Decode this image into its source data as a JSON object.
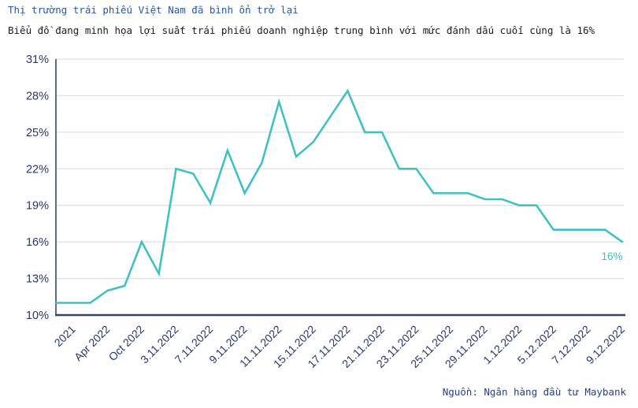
{
  "header": {
    "title": "Thị trường trái phiếu Việt Nam đã bình ổn trở lại",
    "subtitle": "Biểu đồ đang minh họa lợi suất trái phiếu doanh nghiệp trung bình với mức đánh dấu cuối cùng là 16%"
  },
  "footer": {
    "source": "Nguồn: Ngân hàng đầu tư Maybank"
  },
  "chart_data": {
    "type": "line",
    "title": "Thị trường trái phiếu Việt Nam đã bình ổn trở lại",
    "subtitle": "Biểu đồ đang minh họa lợi suất trái phiếu doanh nghiệp trung bình với mức đánh dấu cuối cùng là 16%",
    "series": [
      {
        "name": "Lợi suất trái phiếu doanh nghiệp trung bình",
        "color": "#41c1c4",
        "values": [
          11,
          11,
          11,
          12,
          12.4,
          16,
          13.4,
          22,
          21.6,
          19.2,
          23.5,
          20,
          22.5,
          27.5,
          23,
          24.2,
          26.3,
          28.4,
          25,
          25,
          22,
          22,
          20,
          20,
          20,
          19.5,
          19.5,
          19,
          19,
          17,
          17,
          17,
          17,
          16
        ]
      }
    ],
    "x_tick_labels": [
      "2021",
      "Apr 2022",
      "Oct 2022",
      "3.11.2022",
      "7.11.2022",
      "9.11.2022",
      "11.11.2022",
      "15.11.2022",
      "17.11.2022",
      "21.11.2022",
      "23.11.2022",
      "25.11.2022",
      "29.11.2022",
      "1.12.2022",
      "5.12.2022",
      "7.12.2022",
      "9.12.2022"
    ],
    "x_tick_point_indices": [
      1,
      3,
      5,
      7,
      9,
      11,
      13,
      15,
      17,
      19,
      21,
      23,
      25,
      27,
      29,
      31,
      33
    ],
    "y_ticks": [
      10,
      13,
      16,
      19,
      22,
      25,
      28,
      31
    ],
    "y_tick_suffix": "%",
    "ylim": [
      10,
      31
    ],
    "grid": true,
    "legend": "none",
    "annotation": {
      "text": "16%",
      "point_index": 33,
      "value": 16
    },
    "colors": {
      "line": "#41c1c4",
      "annotation": "#41c1c4",
      "axis": "#35456f",
      "tick_label": "#27376b",
      "gridline": "#d9d9d9",
      "title": "#2358a7",
      "subtitle": "#1c1c1c",
      "source": "#1e4390"
    }
  }
}
